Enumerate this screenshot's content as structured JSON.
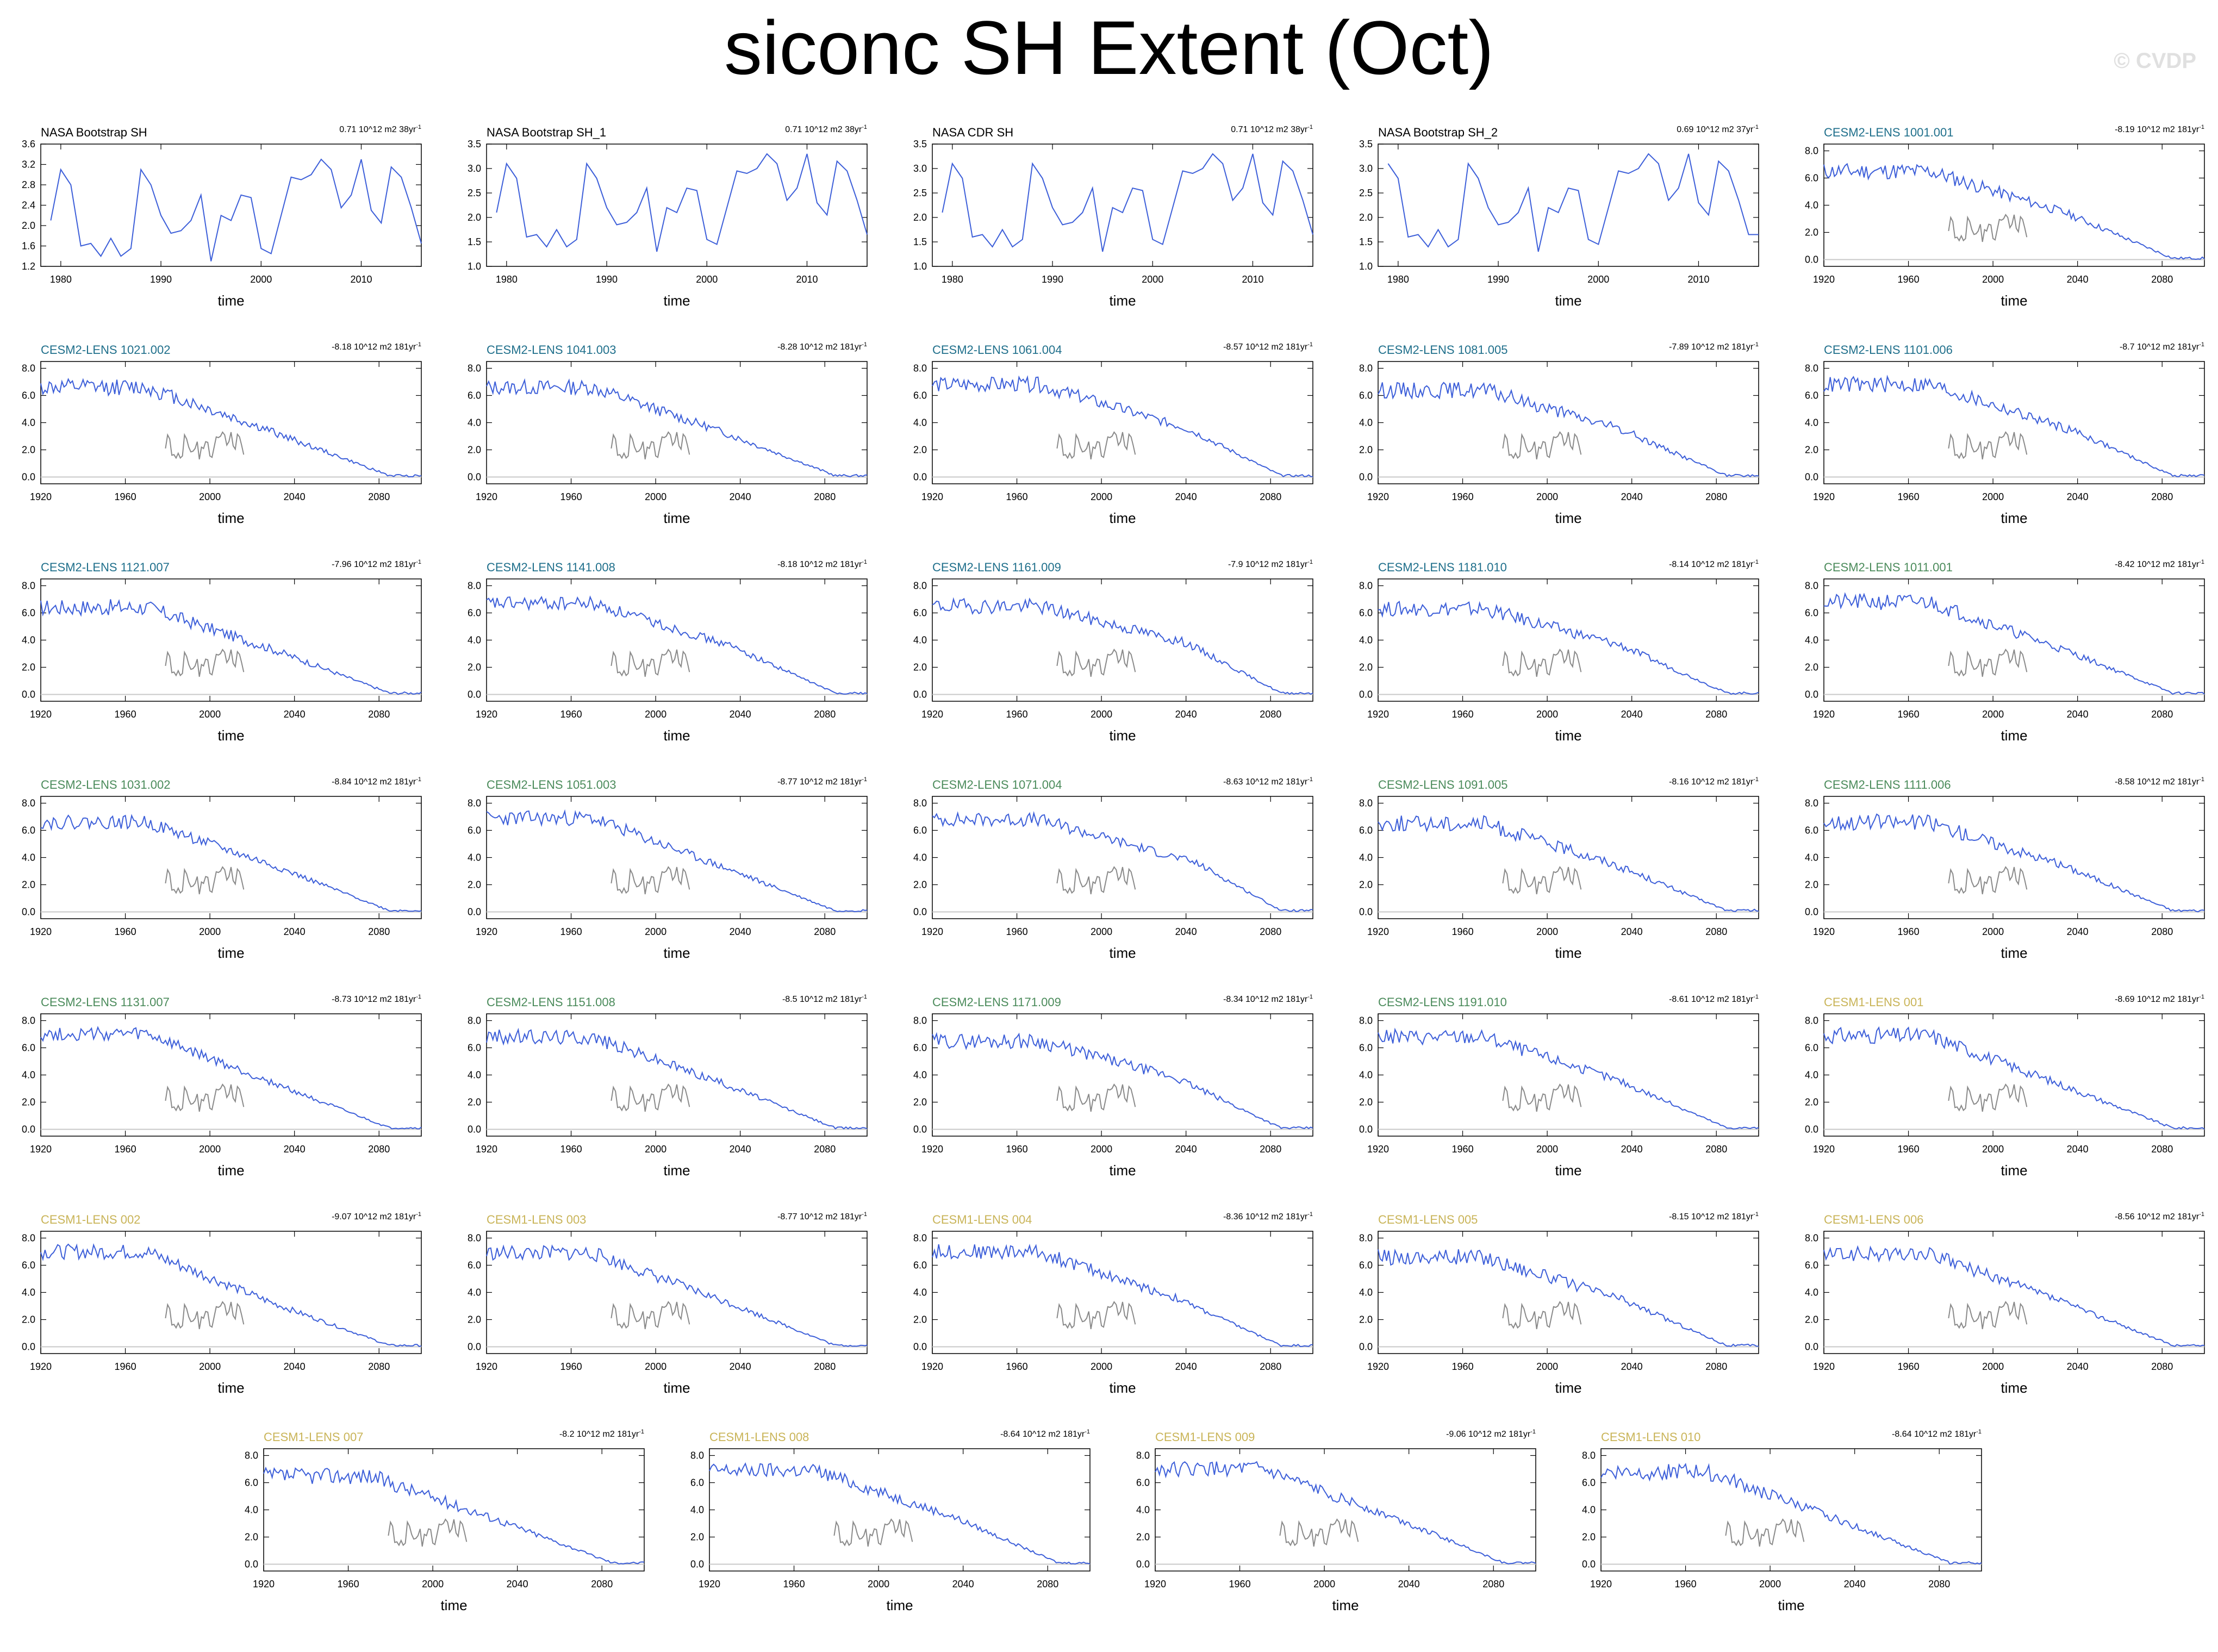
{
  "title": "siconc SH Extent (Oct)",
  "watermark": "© CVDP",
  "colors": {
    "line": "#3d5fd9",
    "obs_overlay": "#8a8a8a",
    "zero_line": "#c8c8c8",
    "cesm2_smbb": "#1f6f8b",
    "cesm2_cmip6": "#4b8b5b",
    "cesm1": "#c9b458",
    "obs": "#000000"
  },
  "chart_data": [
    {
      "type": "line",
      "title": "NASA Bootstrap SH",
      "trend": "0.71 10^12 m2 38yr",
      "xlabel": "time",
      "xlim": [
        1978,
        2016
      ],
      "ylim": [
        1.2,
        3.6
      ],
      "yticks": [
        "1.2",
        "1.6",
        "2.0",
        "2.4",
        "2.8",
        "3.2",
        "3.6"
      ],
      "xticks": [
        "1980",
        "1990",
        "2000",
        "2010"
      ],
      "group": "obs",
      "x": [
        1979,
        1980,
        1981,
        1982,
        1983,
        1984,
        1985,
        1986,
        1987,
        1988,
        1989,
        1990,
        1991,
        1992,
        1993,
        1994,
        1995,
        1996,
        1997,
        1998,
        1999,
        2000,
        2001,
        2002,
        2003,
        2004,
        2005,
        2006,
        2007,
        2008,
        2009,
        2010,
        2011,
        2012,
        2013,
        2014,
        2015,
        2016
      ],
      "values": [
        2.1,
        3.1,
        2.8,
        1.6,
        1.65,
        1.4,
        1.75,
        1.4,
        1.55,
        3.1,
        2.8,
        2.2,
        1.85,
        1.9,
        2.1,
        2.6,
        1.3,
        2.2,
        2.1,
        2.6,
        2.55,
        1.55,
        1.45,
        2.2,
        2.95,
        2.9,
        3.0,
        3.3,
        3.1,
        2.35,
        2.6,
        3.3,
        2.3,
        2.05,
        3.15,
        2.95,
        2.35,
        1.65
      ]
    },
    {
      "type": "line",
      "title": "NASA Bootstrap SH_1",
      "trend": "0.71 10^12 m2 38yr",
      "xlabel": "time",
      "xlim": [
        1978,
        2016
      ],
      "ylim": [
        1.0,
        3.5
      ],
      "yticks": [
        "1.0",
        "1.5",
        "2.0",
        "2.5",
        "3.0",
        "3.5"
      ],
      "xticks": [
        "1980",
        "1990",
        "2000",
        "2010"
      ],
      "group": "obs",
      "x": [
        1979,
        1980,
        1981,
        1982,
        1983,
        1984,
        1985,
        1986,
        1987,
        1988,
        1989,
        1990,
        1991,
        1992,
        1993,
        1994,
        1995,
        1996,
        1997,
        1998,
        1999,
        2000,
        2001,
        2002,
        2003,
        2004,
        2005,
        2006,
        2007,
        2008,
        2009,
        2010,
        2011,
        2012,
        2013,
        2014,
        2015,
        2016
      ],
      "values": [
        2.1,
        3.1,
        2.8,
        1.6,
        1.65,
        1.4,
        1.75,
        1.4,
        1.55,
        3.1,
        2.8,
        2.2,
        1.85,
        1.9,
        2.1,
        2.6,
        1.3,
        2.2,
        2.1,
        2.6,
        2.55,
        1.55,
        1.45,
        2.2,
        2.95,
        2.9,
        3.0,
        3.3,
        3.1,
        2.35,
        2.6,
        3.3,
        2.3,
        2.05,
        3.15,
        2.95,
        2.35,
        1.65
      ]
    },
    {
      "type": "line",
      "title": "NASA CDR SH",
      "trend": "0.71 10^12 m2 38yr",
      "xlabel": "time",
      "xlim": [
        1978,
        2016
      ],
      "ylim": [
        1.0,
        3.5
      ],
      "yticks": [
        "1.0",
        "1.5",
        "2.0",
        "2.5",
        "3.0",
        "3.5"
      ],
      "xticks": [
        "1980",
        "1990",
        "2000",
        "2010"
      ],
      "group": "obs",
      "x": [
        1979,
        1980,
        1981,
        1982,
        1983,
        1984,
        1985,
        1986,
        1987,
        1988,
        1989,
        1990,
        1991,
        1992,
        1993,
        1994,
        1995,
        1996,
        1997,
        1998,
        1999,
        2000,
        2001,
        2002,
        2003,
        2004,
        2005,
        2006,
        2007,
        2008,
        2009,
        2010,
        2011,
        2012,
        2013,
        2014,
        2015,
        2016
      ],
      "values": [
        2.1,
        3.1,
        2.8,
        1.6,
        1.65,
        1.4,
        1.75,
        1.4,
        1.55,
        3.1,
        2.8,
        2.2,
        1.85,
        1.9,
        2.1,
        2.6,
        1.3,
        2.2,
        2.1,
        2.6,
        2.55,
        1.55,
        1.45,
        2.2,
        2.95,
        2.9,
        3.0,
        3.3,
        3.1,
        2.35,
        2.6,
        3.3,
        2.3,
        2.05,
        3.15,
        2.95,
        2.35,
        1.65
      ]
    },
    {
      "type": "line",
      "title": "NASA Bootstrap SH_2",
      "trend": "0.69 10^12 m2 37yr",
      "xlabel": "time",
      "xlim": [
        1978,
        2016
      ],
      "ylim": [
        1.0,
        3.5
      ],
      "yticks": [
        "1.0",
        "1.5",
        "2.0",
        "2.5",
        "3.0",
        "3.5"
      ],
      "xticks": [
        "1980",
        "1990",
        "2000",
        "2010"
      ],
      "group": "obs",
      "x": [
        1979,
        1980,
        1981,
        1982,
        1983,
        1984,
        1985,
        1986,
        1987,
        1988,
        1989,
        1990,
        1991,
        1992,
        1993,
        1994,
        1995,
        1996,
        1997,
        1998,
        1999,
        2000,
        2001,
        2002,
        2003,
        2004,
        2005,
        2006,
        2007,
        2008,
        2009,
        2010,
        2011,
        2012,
        2013,
        2014,
        2015,
        2016
      ],
      "values": [
        3.1,
        2.8,
        1.6,
        1.65,
        1.4,
        1.75,
        1.4,
        1.55,
        3.1,
        2.8,
        2.2,
        1.85,
        1.9,
        2.1,
        2.6,
        1.3,
        2.2,
        2.1,
        2.6,
        2.55,
        1.55,
        1.45,
        2.2,
        2.95,
        2.9,
        3.0,
        3.3,
        3.1,
        2.35,
        2.6,
        3.3,
        2.3,
        2.05,
        3.15,
        2.95,
        2.35,
        1.65,
        1.65
      ]
    },
    {
      "type": "line",
      "title": "CESM2-LENS 1001.001",
      "trend": "-8.19 10^12 m2 181yr",
      "group": "cesm2_smbb",
      "start": 6.5,
      "knee": 2035,
      "mid": 3.4,
      "end": 0.1,
      "noise": 0.6,
      "seed": 11
    },
    {
      "type": "line",
      "title": "CESM2-LENS 1021.002",
      "trend": "-8.18 10^12 m2 181yr",
      "group": "cesm2_smbb",
      "start": 6.6,
      "knee": 2030,
      "mid": 3.3,
      "end": 0.1,
      "noise": 0.6,
      "seed": 12
    },
    {
      "type": "line",
      "title": "CESM2-LENS 1041.003",
      "trend": "-8.28 10^12 m2 181yr",
      "group": "cesm2_smbb",
      "start": 6.6,
      "knee": 2030,
      "mid": 3.4,
      "end": 0.1,
      "noise": 0.55,
      "seed": 13
    },
    {
      "type": "line",
      "title": "CESM2-LENS 1061.004",
      "trend": "-8.57 10^12 m2 181yr",
      "group": "cesm2_smbb",
      "start": 6.8,
      "knee": 2040,
      "mid": 3.6,
      "end": 0.1,
      "noise": 0.55,
      "seed": 14
    },
    {
      "type": "line",
      "title": "CESM2-LENS 1081.005",
      "trend": "-7.89 10^12 m2 181yr",
      "group": "cesm2_smbb",
      "start": 6.4,
      "knee": 2035,
      "mid": 3.5,
      "end": 0.1,
      "noise": 0.6,
      "seed": 15
    },
    {
      "type": "line",
      "title": "CESM2-LENS 1101.006",
      "trend": "-8.7 10^12 m2 181yr",
      "group": "cesm2_smbb",
      "start": 6.8,
      "knee": 2040,
      "mid": 3.3,
      "end": 0.1,
      "noise": 0.6,
      "seed": 16
    },
    {
      "type": "line",
      "title": "CESM2-LENS 1121.007",
      "trend": "-7.96 10^12 m2 181yr",
      "group": "cesm2_smbb",
      "start": 6.4,
      "knee": 2030,
      "mid": 3.3,
      "end": 0.1,
      "noise": 0.6,
      "seed": 17
    },
    {
      "type": "line",
      "title": "CESM2-LENS 1141.008",
      "trend": "-8.18 10^12 m2 181yr",
      "group": "cesm2_smbb",
      "start": 6.7,
      "knee": 2035,
      "mid": 3.6,
      "end": 0.1,
      "noise": 0.5,
      "seed": 18
    },
    {
      "type": "line",
      "title": "CESM2-LENS 1161.009",
      "trend": "-7.9 10^12 m2 181yr",
      "group": "cesm2_smbb",
      "start": 6.5,
      "knee": 2040,
      "mid": 3.8,
      "end": 0.1,
      "noise": 0.55,
      "seed": 19
    },
    {
      "type": "line",
      "title": "CESM2-LENS 1181.010",
      "trend": "-8.14 10^12 m2 181yr",
      "group": "cesm2_smbb",
      "start": 6.3,
      "knee": 2035,
      "mid": 3.6,
      "end": 0.1,
      "noise": 0.55,
      "seed": 20
    },
    {
      "type": "line",
      "title": "CESM2-LENS 1011.001",
      "trend": "-8.42 10^12 m2 181yr",
      "group": "cesm2_cmip6",
      "start": 6.8,
      "knee": 2035,
      "mid": 3.2,
      "end": 0.1,
      "noise": 0.6,
      "seed": 21
    },
    {
      "type": "line",
      "title": "CESM2-LENS 1031.002",
      "trend": "-8.84 10^12 m2 181yr",
      "group": "cesm2_cmip6",
      "start": 6.6,
      "knee": 2030,
      "mid": 3.4,
      "end": 0.1,
      "noise": 0.5,
      "seed": 22
    },
    {
      "type": "line",
      "title": "CESM2-LENS 1051.003",
      "trend": "-8.77 10^12 m2 181yr",
      "group": "cesm2_cmip6",
      "start": 6.9,
      "knee": 2030,
      "mid": 3.4,
      "end": 0.1,
      "noise": 0.55,
      "seed": 23
    },
    {
      "type": "line",
      "title": "CESM2-LENS 1071.004",
      "trend": "-8.63 10^12 m2 181yr",
      "group": "cesm2_cmip6",
      "start": 6.8,
      "knee": 2045,
      "mid": 3.6,
      "end": 0.1,
      "noise": 0.5,
      "seed": 24
    },
    {
      "type": "line",
      "title": "CESM2-LENS 1091.005",
      "trend": "-8.16 10^12 m2 181yr",
      "group": "cesm2_cmip6",
      "start": 6.5,
      "knee": 2030,
      "mid": 3.6,
      "end": 0.1,
      "noise": 0.6,
      "seed": 25
    },
    {
      "type": "line",
      "title": "CESM2-LENS 1111.006",
      "trend": "-8.58 10^12 m2 181yr",
      "group": "cesm2_cmip6",
      "start": 6.6,
      "knee": 2035,
      "mid": 3.3,
      "end": 0.1,
      "noise": 0.6,
      "seed": 26
    },
    {
      "type": "line",
      "title": "CESM2-LENS 1131.007",
      "trend": "-8.73 10^12 m2 181yr",
      "group": "cesm2_cmip6",
      "start": 7.0,
      "knee": 2030,
      "mid": 3.4,
      "end": 0.1,
      "noise": 0.5,
      "seed": 27
    },
    {
      "type": "line",
      "title": "CESM2-LENS 1151.008",
      "trend": "-8.5 10^12 m2 181yr",
      "group": "cesm2_cmip6",
      "start": 6.8,
      "knee": 2030,
      "mid": 3.5,
      "end": 0.1,
      "noise": 0.55,
      "seed": 28
    },
    {
      "type": "line",
      "title": "CESM2-LENS 1171.009",
      "trend": "-8.34 10^12 m2 181yr",
      "group": "cesm2_cmip6",
      "start": 6.5,
      "knee": 2035,
      "mid": 3.8,
      "end": 0.1,
      "noise": 0.55,
      "seed": 29
    },
    {
      "type": "line",
      "title": "CESM2-LENS 1191.010",
      "trend": "-8.61 10^12 m2 181yr",
      "group": "cesm2_cmip6",
      "start": 6.8,
      "knee": 2035,
      "mid": 3.5,
      "end": 0.1,
      "noise": 0.55,
      "seed": 30
    },
    {
      "type": "line",
      "title": "CESM1-LENS 001",
      "trend": "-8.69 10^12 m2 181yr",
      "group": "cesm1",
      "start": 6.9,
      "knee": 2030,
      "mid": 3.4,
      "end": 0.1,
      "noise": 0.6,
      "seed": 31
    },
    {
      "type": "line",
      "title": "CESM1-LENS 002",
      "trend": "-9.07 10^12 m2 181yr",
      "group": "cesm1",
      "start": 7.0,
      "knee": 2030,
      "mid": 3.2,
      "end": 0.1,
      "noise": 0.55,
      "seed": 32
    },
    {
      "type": "line",
      "title": "CESM1-LENS 003",
      "trend": "-8.77 10^12 m2 181yr",
      "group": "cesm1",
      "start": 6.9,
      "knee": 2035,
      "mid": 3.2,
      "end": 0.1,
      "noise": 0.55,
      "seed": 33
    },
    {
      "type": "line",
      "title": "CESM1-LENS 004",
      "trend": "-8.36 10^12 m2 181yr",
      "group": "cesm1",
      "start": 7.0,
      "knee": 2035,
      "mid": 3.6,
      "end": 0.1,
      "noise": 0.55,
      "seed": 34
    },
    {
      "type": "line",
      "title": "CESM1-LENS 005",
      "trend": "-8.15 10^12 m2 181yr",
      "group": "cesm1",
      "start": 6.6,
      "knee": 2035,
      "mid": 3.5,
      "end": 0.1,
      "noise": 0.6,
      "seed": 35
    },
    {
      "type": "line",
      "title": "CESM1-LENS 006",
      "trend": "-8.56 10^12 m2 181yr",
      "group": "cesm1",
      "start": 6.8,
      "knee": 2030,
      "mid": 3.5,
      "end": 0.1,
      "noise": 0.55,
      "seed": 36
    },
    {
      "type": "line",
      "title": "CESM1-LENS 007",
      "trend": "-8.2 10^12 m2 181yr",
      "group": "cesm1",
      "start": 6.5,
      "knee": 2030,
      "mid": 3.3,
      "end": 0.1,
      "noise": 0.6,
      "seed": 37
    },
    {
      "type": "line",
      "title": "CESM1-LENS 008",
      "trend": "-8.64 10^12 m2 181yr",
      "group": "cesm1",
      "start": 6.9,
      "knee": 2035,
      "mid": 3.5,
      "end": 0.1,
      "noise": 0.55,
      "seed": 38
    },
    {
      "type": "line",
      "title": "CESM1-LENS 009",
      "trend": "-9.06 10^12 m2 181yr",
      "group": "cesm1",
      "start": 7.0,
      "knee": 2035,
      "mid": 3.3,
      "end": 0.1,
      "noise": 0.55,
      "seed": 39
    },
    {
      "type": "line",
      "title": "CESM1-LENS 010",
      "trend": "-8.64 10^12 m2 181yr",
      "group": "cesm1",
      "start": 6.8,
      "knee": 2030,
      "mid": 3.4,
      "end": 0.1,
      "noise": 0.6,
      "seed": 40
    }
  ],
  "model_axes": {
    "xlabel": "time",
    "xlim": [
      1920,
      2100
    ],
    "ylim": [
      -0.5,
      8.5
    ],
    "yticks": [
      "0.0",
      "2.0",
      "4.0",
      "6.0",
      "8.0"
    ],
    "xticks": [
      "1920",
      "1960",
      "2000",
      "2040",
      "2080"
    ],
    "trend_unit": "-1"
  },
  "obs_overlay": {
    "x": [
      1979,
      1980,
      1981,
      1982,
      1983,
      1984,
      1985,
      1986,
      1987,
      1988,
      1989,
      1990,
      1991,
      1992,
      1993,
      1994,
      1995,
      1996,
      1997,
      1998,
      1999,
      2000,
      2001,
      2002,
      2003,
      2004,
      2005,
      2006,
      2007,
      2008,
      2009,
      2010,
      2011,
      2012,
      2013,
      2014,
      2015,
      2016
    ],
    "values": [
      2.1,
      3.1,
      2.8,
      1.6,
      1.65,
      1.4,
      1.75,
      1.4,
      1.55,
      3.1,
      2.8,
      2.2,
      1.85,
      1.9,
      2.1,
      2.6,
      1.3,
      2.2,
      2.1,
      2.6,
      2.55,
      1.55,
      1.45,
      2.2,
      2.95,
      2.9,
      3.0,
      3.3,
      3.1,
      2.35,
      2.6,
      3.3,
      2.3,
      2.05,
      3.15,
      2.95,
      2.35,
      1.65
    ]
  }
}
